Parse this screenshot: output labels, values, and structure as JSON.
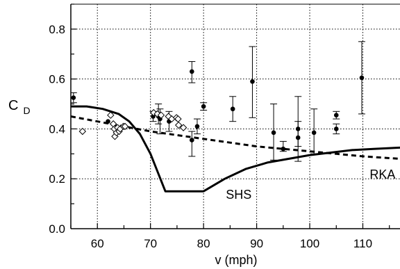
{
  "chart_data": {
    "type": "scatter",
    "title": "",
    "xlabel": "v (mph)",
    "ylabel": {
      "main": "C",
      "subscript": "D"
    },
    "xlim": [
      55,
      117
    ],
    "ylim": [
      0,
      0.9
    ],
    "xticks": [
      60,
      70,
      80,
      90,
      100,
      110
    ],
    "yticks": [
      0.0,
      0.2,
      0.4,
      0.6,
      0.8
    ],
    "ytick_labels": [
      "0.0",
      "0.2",
      "0.4",
      "0.6",
      "0.8"
    ],
    "grid": "dotted",
    "series": [
      {
        "marker": "filled-circle-with-error-bars",
        "points": [
          {
            "x": 55.5,
            "y": 0.525,
            "lo": 0.505,
            "hi": 0.545
          },
          {
            "x": 62.0,
            "y": 0.43,
            "lo": 0.43,
            "hi": 0.43
          },
          {
            "x": 70.5,
            "y": 0.45,
            "lo": 0.43,
            "hi": 0.47
          },
          {
            "x": 71.5,
            "y": 0.45,
            "lo": 0.42,
            "hi": 0.5
          },
          {
            "x": 71.8,
            "y": 0.44,
            "lo": 0.38,
            "hi": 0.48
          },
          {
            "x": 73.5,
            "y": 0.43,
            "lo": 0.39,
            "hi": 0.47
          },
          {
            "x": 77.8,
            "y": 0.63,
            "lo": 0.585,
            "hi": 0.67
          },
          {
            "x": 77.8,
            "y": 0.355,
            "lo": 0.29,
            "hi": 0.39
          },
          {
            "x": 78.8,
            "y": 0.41,
            "lo": 0.38,
            "hi": 0.44
          },
          {
            "x": 80.0,
            "y": 0.49,
            "lo": 0.475,
            "hi": 0.505
          },
          {
            "x": 85.5,
            "y": 0.48,
            "lo": 0.43,
            "hi": 0.53
          },
          {
            "x": 89.2,
            "y": 0.59,
            "lo": 0.445,
            "hi": 0.73
          },
          {
            "x": 93.2,
            "y": 0.385,
            "lo": 0.275,
            "hi": 0.5
          },
          {
            "x": 95.0,
            "y": 0.32,
            "lo": 0.31,
            "hi": 0.35
          },
          {
            "x": 97.8,
            "y": 0.4,
            "lo": 0.33,
            "hi": 0.53
          },
          {
            "x": 97.8,
            "y": 0.365,
            "lo": 0.27,
            "hi": 0.43
          },
          {
            "x": 100.8,
            "y": 0.385,
            "lo": 0.3,
            "hi": 0.48
          },
          {
            "x": 105.0,
            "y": 0.455,
            "lo": 0.44,
            "hi": 0.47
          },
          {
            "x": 105.0,
            "y": 0.4,
            "lo": 0.38,
            "hi": 0.42
          },
          {
            "x": 109.8,
            "y": 0.605,
            "lo": 0.46,
            "hi": 0.75
          }
        ]
      },
      {
        "marker": "open-diamond",
        "points": [
          {
            "x": 57.2,
            "y": 0.39
          },
          {
            "x": 62.5,
            "y": 0.455
          },
          {
            "x": 63.0,
            "y": 0.42
          },
          {
            "x": 63.2,
            "y": 0.4
          },
          {
            "x": 63.3,
            "y": 0.37
          },
          {
            "x": 63.6,
            "y": 0.385
          },
          {
            "x": 63.8,
            "y": 0.405
          },
          {
            "x": 64.1,
            "y": 0.39
          },
          {
            "x": 64.3,
            "y": 0.4
          },
          {
            "x": 64.9,
            "y": 0.41
          },
          {
            "x": 65.2,
            "y": 0.41
          },
          {
            "x": 70.6,
            "y": 0.465
          },
          {
            "x": 71.3,
            "y": 0.46
          },
          {
            "x": 72.0,
            "y": 0.455
          },
          {
            "x": 73.4,
            "y": 0.45
          },
          {
            "x": 74.0,
            "y": 0.44
          },
          {
            "x": 74.9,
            "y": 0.445
          },
          {
            "x": 75.2,
            "y": 0.44
          },
          {
            "x": 75.3,
            "y": 0.415
          },
          {
            "x": 76.2,
            "y": 0.405
          }
        ]
      },
      {
        "name": "SHS",
        "style": "solid-thick",
        "points": [
          {
            "x": 55,
            "y": 0.49
          },
          {
            "x": 58,
            "y": 0.49
          },
          {
            "x": 61,
            "y": 0.48
          },
          {
            "x": 64,
            "y": 0.46
          },
          {
            "x": 66,
            "y": 0.43
          },
          {
            "x": 68,
            "y": 0.38
          },
          {
            "x": 70,
            "y": 0.3
          },
          {
            "x": 71.5,
            "y": 0.22
          },
          {
            "x": 72.8,
            "y": 0.15
          },
          {
            "x": 80,
            "y": 0.15
          },
          {
            "x": 84,
            "y": 0.2
          },
          {
            "x": 88,
            "y": 0.24
          },
          {
            "x": 92,
            "y": 0.265
          },
          {
            "x": 96,
            "y": 0.28
          },
          {
            "x": 100,
            "y": 0.295
          },
          {
            "x": 104,
            "y": 0.305
          },
          {
            "x": 108,
            "y": 0.315
          },
          {
            "x": 112,
            "y": 0.32
          },
          {
            "x": 117,
            "y": 0.325
          }
        ]
      },
      {
        "name": "RKA",
        "style": "dashed-thick",
        "points": [
          {
            "x": 55,
            "y": 0.45
          },
          {
            "x": 60,
            "y": 0.43
          },
          {
            "x": 65,
            "y": 0.41
          },
          {
            "x": 70,
            "y": 0.39
          },
          {
            "x": 75,
            "y": 0.375
          },
          {
            "x": 80,
            "y": 0.36
          },
          {
            "x": 85,
            "y": 0.345
          },
          {
            "x": 90,
            "y": 0.33
          },
          {
            "x": 95,
            "y": 0.32
          },
          {
            "x": 100,
            "y": 0.31
          },
          {
            "x": 105,
            "y": 0.3
          },
          {
            "x": 110,
            "y": 0.29
          },
          {
            "x": 117,
            "y": 0.28
          }
        ]
      }
    ],
    "annotations": [
      {
        "text": "SHS",
        "x": 84.2,
        "y": 0.12
      },
      {
        "text": "RKA",
        "x": 111.3,
        "y": 0.2
      }
    ]
  }
}
